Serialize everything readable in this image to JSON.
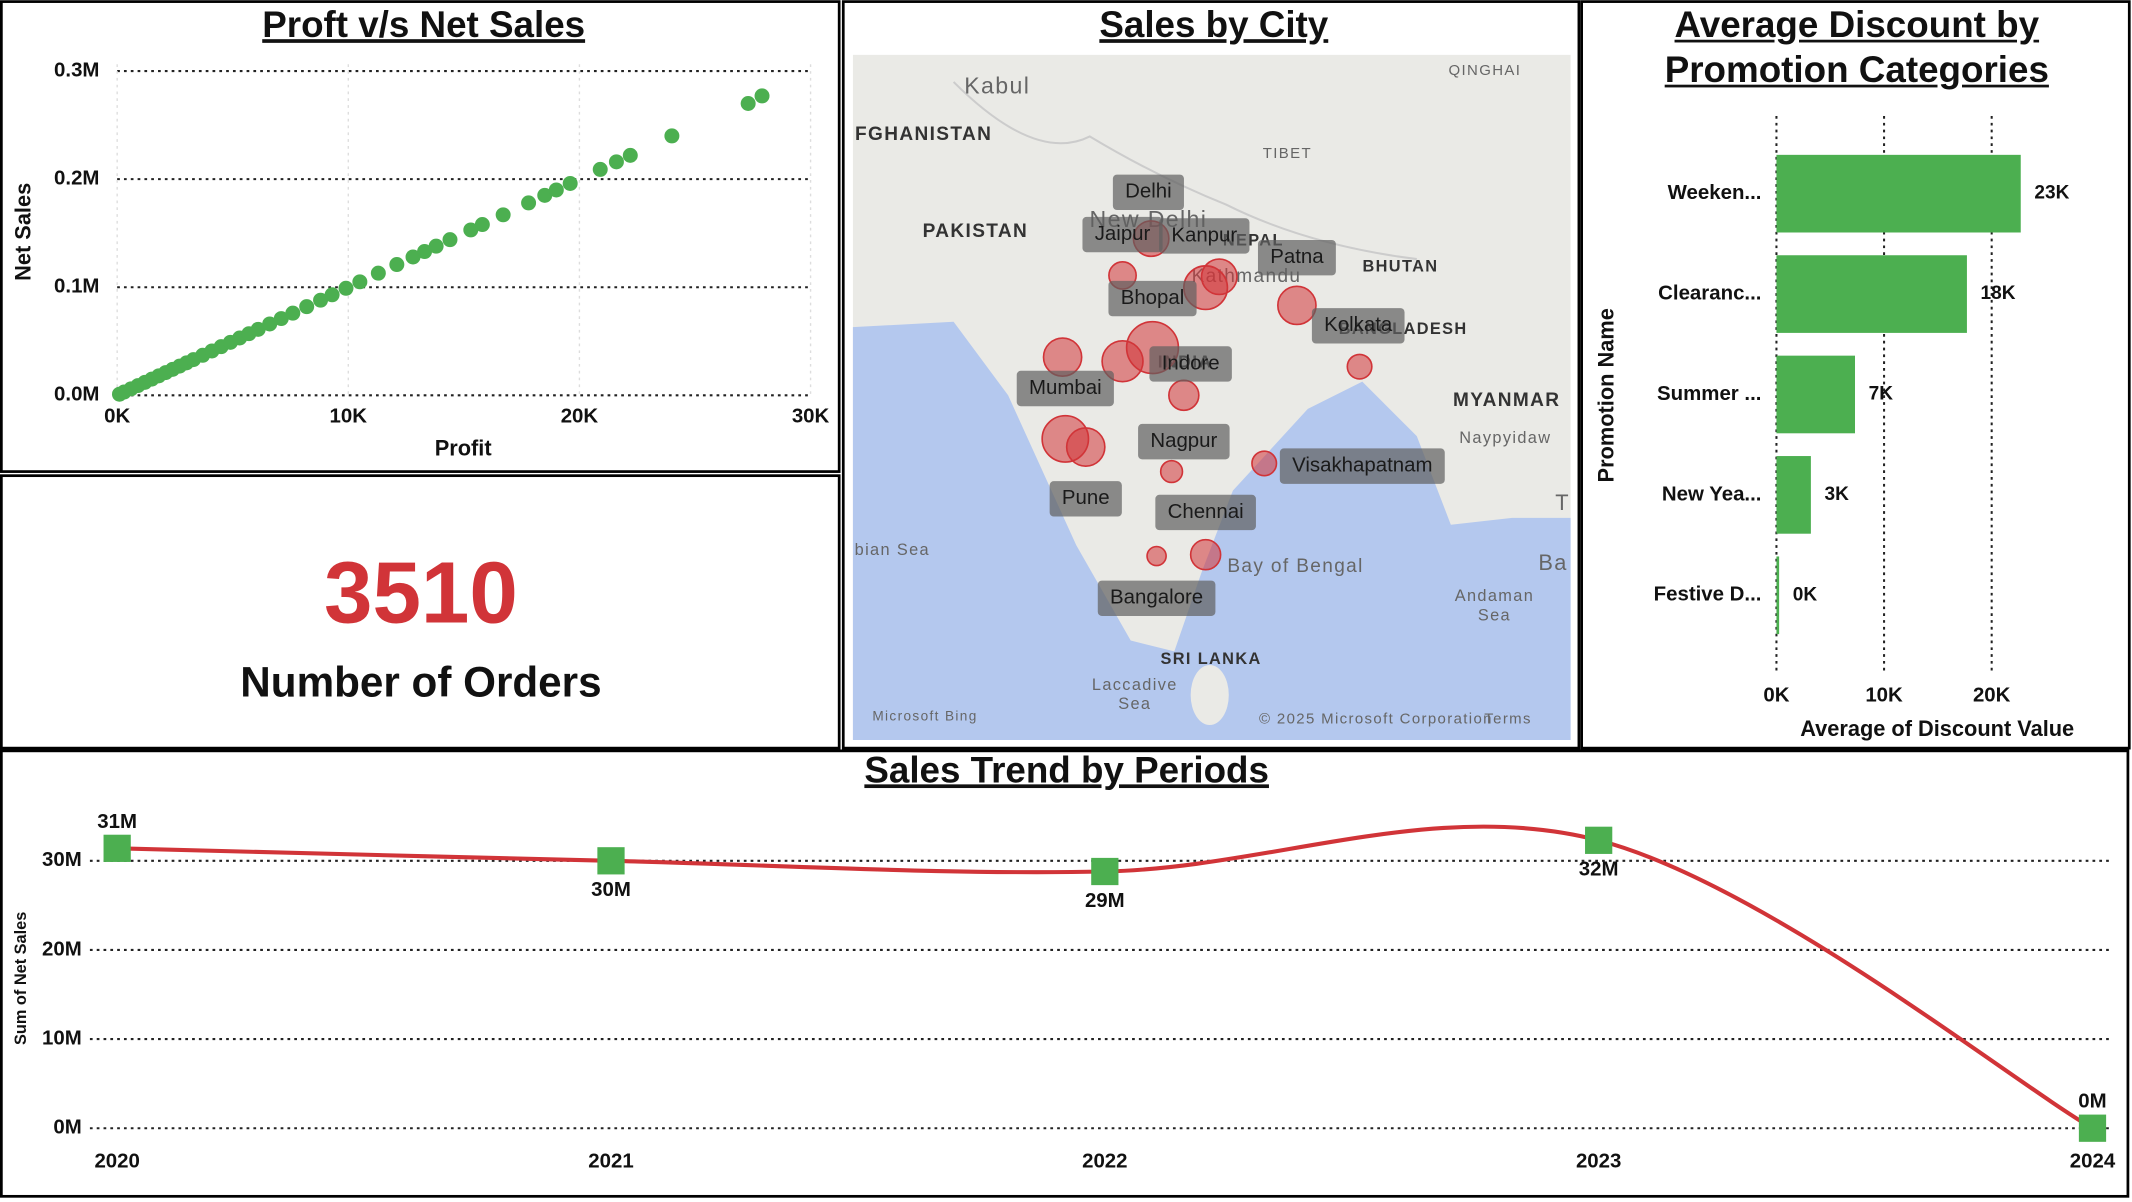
{
  "chart_data": [
    {
      "type": "scatter",
      "title": "Proft v/s Net Sales",
      "x_label": "Profit",
      "y_label": "Net Sales",
      "color": "#4caf50",
      "x": [
        100,
        300,
        600,
        900,
        1200,
        1500,
        1800,
        2100,
        2400,
        2700,
        3000,
        3300,
        3700,
        4100,
        4500,
        4900,
        5300,
        5700,
        6100,
        6600,
        7100,
        7600,
        8200,
        8800,
        9300,
        9900,
        10500,
        11300,
        12100,
        12800,
        13300,
        13800,
        14400,
        15300,
        15800,
        16700,
        17800,
        18500,
        19000,
        19600,
        20900,
        21600,
        22200,
        24000,
        27300,
        27900
      ],
      "values": [
        1000,
        3000,
        6000,
        9000,
        12000,
        15000,
        18000,
        21000,
        24000,
        27000,
        30000,
        33000,
        37000,
        41000,
        45000,
        49000,
        53000,
        57000,
        61000,
        66000,
        71000,
        76000,
        82000,
        88000,
        93000,
        99000,
        105000,
        113000,
        121000,
        128000,
        133000,
        138000,
        144000,
        153000,
        158000,
        167000,
        178000,
        185000,
        190000,
        196000,
        209000,
        216000,
        222000,
        240000,
        270000,
        277000
      ],
      "xlim": [
        0,
        30000
      ],
      "xticks": [
        {
          "value": 0,
          "label": "0K"
        },
        {
          "value": 10000,
          "label": "10K"
        },
        {
          "value": 20000,
          "label": "20K"
        },
        {
          "value": 30000,
          "label": "30K"
        }
      ],
      "ylim": [
        0,
        300000
      ],
      "yticks": [
        {
          "value": 0,
          "label": "0.0M"
        },
        {
          "value": 100000,
          "label": "0.1M"
        },
        {
          "value": 200000,
          "label": "0.2M"
        },
        {
          "value": 300000,
          "label": "0.3M"
        }
      ],
      "grid": true
    },
    {
      "type": "card",
      "value": 3510,
      "label": "Number of Orders",
      "color": "#d13438"
    },
    {
      "type": "map",
      "title": "Sales by City",
      "bubble_color": "#d13438",
      "cities": [
        "Delhi",
        "Jaipur",
        "Kanpur",
        "Patna",
        "Bhopal",
        "Kolkata",
        "Indore",
        "Mumbai",
        "Nagpur",
        "Visakhapatnam",
        "Pune",
        "Chennai",
        "Bangalore"
      ],
      "map_labels": [
        "Kabul",
        "FGHANISTAN",
        "PAKISTAN",
        "TIBET",
        "QINGHAI",
        "NEPAL",
        "BHUTAN",
        "BANGLADESH",
        "MYANMAR",
        "Naypyidaw",
        "INDIA",
        "New Delhi",
        "Kathmandu",
        "Bay of Bengal",
        "Andaman",
        "Sea",
        "bian Sea",
        "Laccadive",
        "Sea",
        "SRI LANKA",
        "T",
        "Ba",
        "Microsoft Bing",
        "© 2025 Microsoft Corporation",
        "Terms"
      ]
    },
    {
      "type": "bar",
      "orientation": "horizontal",
      "title": "Average Discount by Promotion Categories",
      "x_label": "Average of Discount Value",
      "y_label": "Promotion Name",
      "color": "#4caf50",
      "categories": [
        "Weeken...",
        "Clearanc...",
        "Summer ...",
        "New Yea...",
        "Festive D..."
      ],
      "values": [
        22700,
        17700,
        7300,
        3200,
        250
      ],
      "value_labels": [
        "23K",
        "18K",
        "7K",
        "3K",
        "0K"
      ],
      "xlim": [
        0,
        30000
      ],
      "xticks": [
        {
          "value": 0,
          "label": "0K"
        },
        {
          "value": 10000,
          "label": "10K"
        },
        {
          "value": 20000,
          "label": "20K"
        }
      ],
      "grid": true
    },
    {
      "type": "line",
      "title": "Sales Trend by Periods",
      "y_label": "Sum of Net Sales",
      "color": "#d13438",
      "marker_color": "#4caf50",
      "categories": [
        "2020",
        "2021",
        "2022",
        "2023",
        "2024"
      ],
      "values": [
        31400000,
        30000000,
        28800000,
        32300000,
        0
      ],
      "value_labels": [
        "31M",
        "30M",
        "29M",
        "32M",
        "0M"
      ],
      "ylim": [
        0,
        35000000
      ],
      "yticks": [
        {
          "value": 0,
          "label": "0M"
        },
        {
          "value": 10000000,
          "label": "10M"
        },
        {
          "value": 20000000,
          "label": "20M"
        },
        {
          "value": 30000000,
          "label": "30M"
        }
      ],
      "grid": true
    }
  ]
}
